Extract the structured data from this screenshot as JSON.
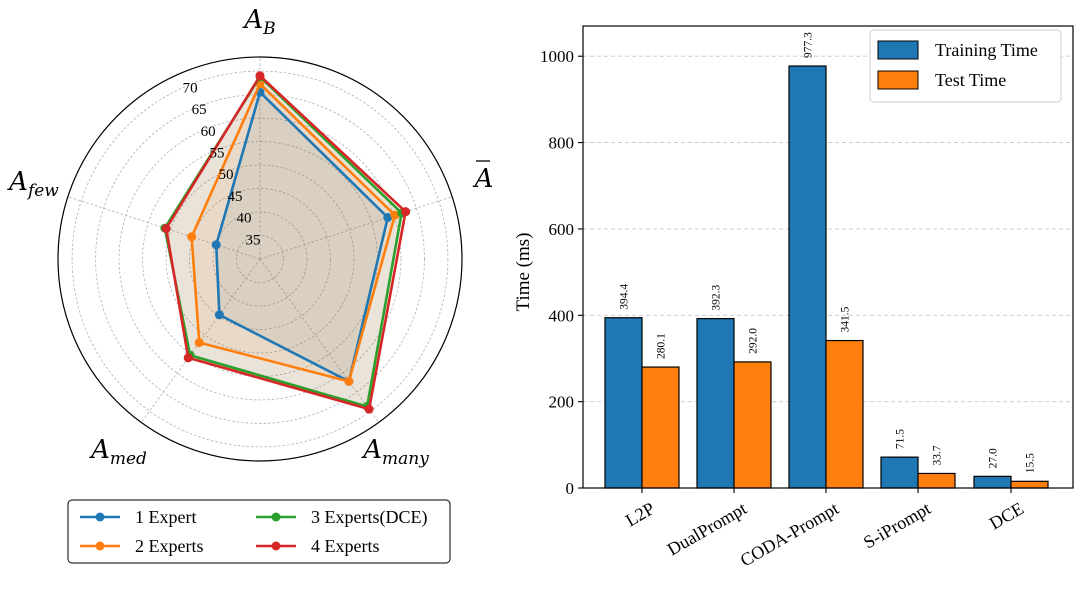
{
  "chart_data": [
    {
      "type": "radar",
      "axes": [
        "A_B",
        "Ā",
        "A_many",
        "A_med",
        "A_few"
      ],
      "axis_labels": [
        {
          "main": "A",
          "sub": "B",
          "bar": false
        },
        {
          "main": "A",
          "sub": "",
          "bar": true
        },
        {
          "main": "A",
          "sub": "many",
          "bar": false
        },
        {
          "main": "A",
          "sub": "med",
          "bar": false
        },
        {
          "main": "A",
          "sub": "few",
          "bar": false
        }
      ],
      "r_ticks": [
        "35",
        "40",
        "45",
        "50",
        "55",
        "60",
        "65",
        "70"
      ],
      "r_tick_values": [
        35,
        40,
        45,
        50,
        55,
        60,
        65,
        70
      ],
      "r_range": [
        30,
        73
      ],
      "series": [
        {
          "name": "1 Expert",
          "color": "#1f77b4",
          "values": [
            65.5,
            58.6,
            62.2,
            44.7,
            39.8
          ]
        },
        {
          "name": "2 Experts",
          "color": "#ff7f0e",
          "values": [
            67.3,
            60.2,
            62.2,
            52.0,
            45.3
          ]
        },
        {
          "name": "3 Experts(DCE)",
          "color": "#2ca02c",
          "values": [
            68.8,
            61.7,
            68.8,
            55.3,
            51.3
          ]
        },
        {
          "name": "4 Experts",
          "color": "#d62728",
          "values": [
            69.0,
            62.6,
            69.5,
            56.0,
            51.0
          ]
        }
      ],
      "legend": {
        "position": "bottom",
        "columns": 2
      }
    },
    {
      "type": "bar",
      "categories": [
        "L2P",
        "DualPrompt",
        "CODA-Prompt",
        "S-iPrompt",
        "DCE"
      ],
      "series": [
        {
          "name": "Training Time",
          "color": "#1f77b4",
          "values": [
            394.4,
            392.3,
            977.3,
            71.5,
            27.0
          ],
          "labels": [
            "394.4",
            "392.3",
            "977.3",
            "71.5",
            "27.0"
          ]
        },
        {
          "name": "Test Time",
          "color": "#ff7f0e",
          "values": [
            280.1,
            292.0,
            341.5,
            33.7,
            15.5
          ],
          "labels": [
            "280.1",
            "292.0",
            "341.5",
            "33.7",
            "15.5"
          ]
        }
      ],
      "ylabel": "Time (ms)",
      "xlabel": "",
      "ylim": [
        0,
        1070
      ],
      "y_ticks": [
        0,
        200,
        400,
        600,
        800,
        1000
      ],
      "y_tick_labels": [
        "0",
        "200",
        "400",
        "600",
        "800",
        "1000"
      ],
      "grid": "y-dashed",
      "legend": {
        "position": "top-right"
      }
    }
  ]
}
